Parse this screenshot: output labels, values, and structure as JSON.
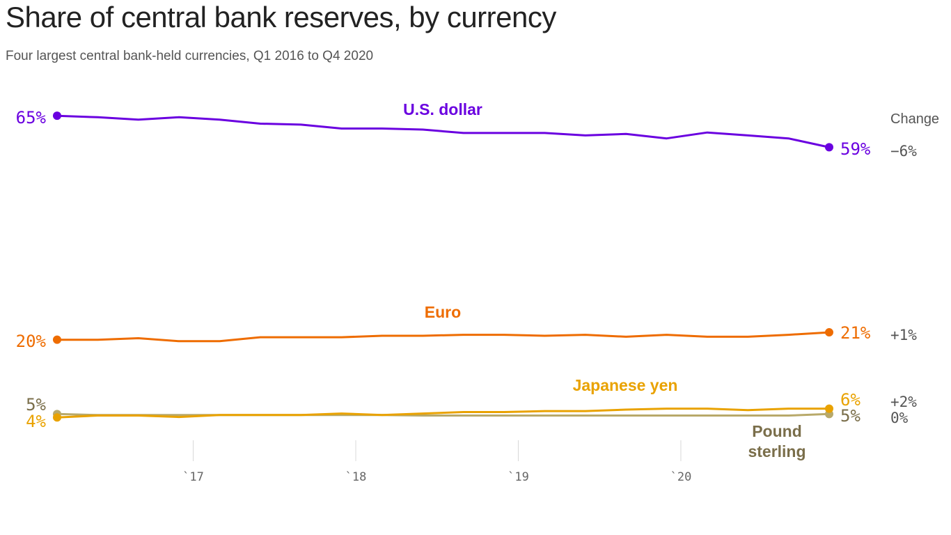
{
  "title": "Share of central bank reserves, by currency",
  "subtitle": "Four largest central bank-held currencies, Q1 2016 to Q4 2020",
  "chart_data": {
    "type": "line",
    "title": "Share of central bank reserves, by currency",
    "subtitle": "Four largest central bank-held currencies, Q1 2016 to Q4 2020",
    "x": [
      "2016 Q1",
      "2016 Q2",
      "2016 Q3",
      "2016 Q4",
      "2017 Q1",
      "2017 Q2",
      "2017 Q3",
      "2017 Q4",
      "2018 Q1",
      "2018 Q2",
      "2018 Q3",
      "2018 Q4",
      "2019 Q1",
      "2019 Q2",
      "2019 Q3",
      "2019 Q4",
      "2020 Q1",
      "2020 Q2",
      "2020 Q3",
      "2020 Q4"
    ],
    "x_ticks": [
      "`17",
      "`18",
      "`19",
      "`20"
    ],
    "ylim": [
      0,
      70
    ],
    "grid": "vertical ticks only",
    "change_header": "Change",
    "series": [
      {
        "name": "U.S. dollar",
        "color": "#6a00e0",
        "start_label": "65%",
        "end_label": "59%",
        "change": "−6%",
        "values": [
          65.4,
          65.1,
          64.6,
          65.1,
          64.6,
          63.8,
          63.6,
          62.8,
          62.8,
          62.6,
          61.9,
          61.9,
          61.9,
          61.4,
          61.7,
          60.8,
          62.0,
          61.4,
          60.8,
          59.0
        ]
      },
      {
        "name": "Euro",
        "color": "#ee6c00",
        "start_label": "20%",
        "end_label": "21%",
        "change": "+1%",
        "values": [
          19.9,
          19.9,
          20.2,
          19.6,
          19.6,
          20.4,
          20.4,
          20.4,
          20.7,
          20.7,
          20.9,
          20.9,
          20.7,
          20.9,
          20.5,
          20.9,
          20.5,
          20.5,
          20.9,
          21.4
        ]
      },
      {
        "name": "Japanese yen",
        "color": "#e9a200",
        "start_label": "4%",
        "end_label": "6%",
        "change": "+2%",
        "values": [
          4.1,
          4.5,
          4.5,
          4.2,
          4.6,
          4.6,
          4.6,
          4.9,
          4.6,
          4.9,
          5.2,
          5.2,
          5.4,
          5.4,
          5.7,
          5.9,
          5.9,
          5.6,
          5.9,
          5.9
        ]
      },
      {
        "name": "Pound sterling",
        "color": "#b8a96a",
        "label_color": "#7a6e4a",
        "start_label": "5%",
        "end_label": "5%",
        "change": "0%",
        "values": [
          4.8,
          4.6,
          4.6,
          4.6,
          4.6,
          4.6,
          4.6,
          4.6,
          4.6,
          4.5,
          4.5,
          4.5,
          4.5,
          4.5,
          4.5,
          4.5,
          4.5,
          4.5,
          4.5,
          4.8
        ]
      }
    ]
  }
}
